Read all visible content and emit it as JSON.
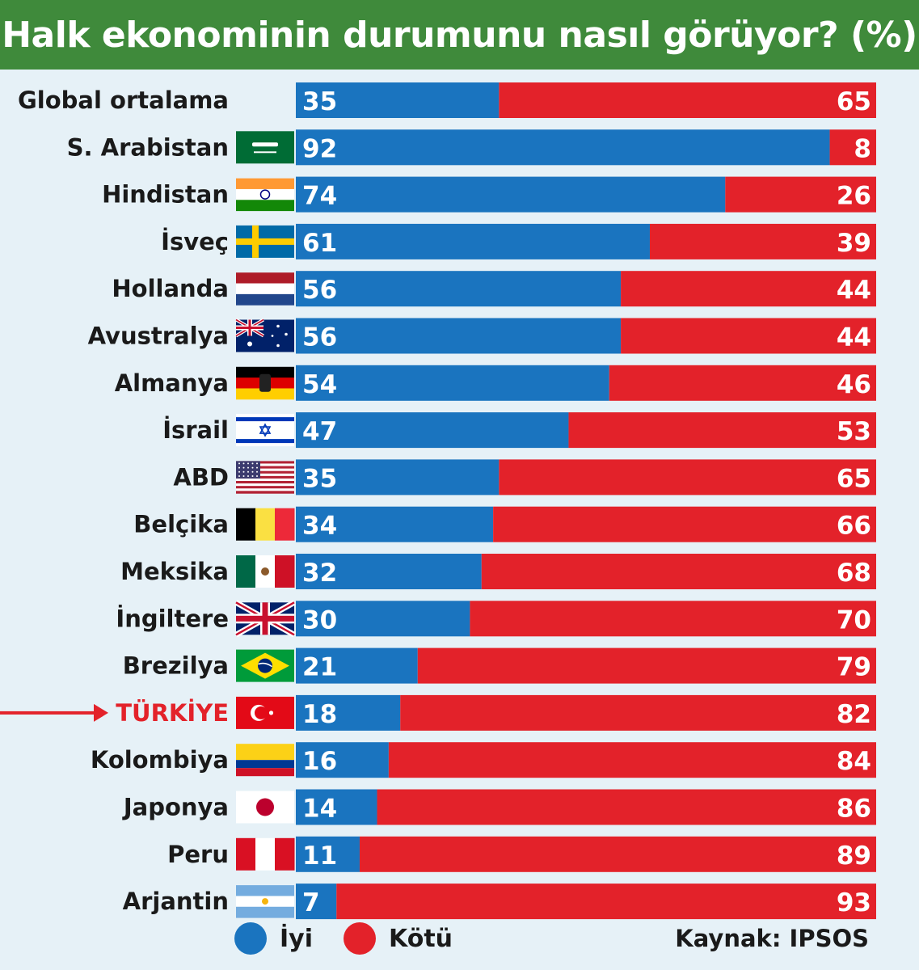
{
  "header": {
    "title": "Halk ekonominin durumunu nasıl görüyor? (%)"
  },
  "chart_data": {
    "type": "bar",
    "stacked": true,
    "orientation": "horizontal",
    "title": "Halk ekonominin durumunu nasıl görüyor? (%)",
    "categories": [
      "Global ortalama",
      "S. Arabistan",
      "Hindistan",
      "İsveç",
      "Hollanda",
      "Avustralya",
      "Almanya",
      "İsrail",
      "ABD",
      "Belçika",
      "Meksika",
      "İngiltere",
      "Brezilya",
      "TÜRKİYE",
      "Kolombiya",
      "Japonya",
      "Peru",
      "Arjantin"
    ],
    "highlight": "TÜRKİYE",
    "series": [
      {
        "name": "İyi",
        "color": "#1a74bf",
        "values": [
          35,
          92,
          74,
          61,
          56,
          56,
          54,
          47,
          35,
          34,
          32,
          30,
          21,
          18,
          16,
          14,
          11,
          7
        ]
      },
      {
        "name": "Kötü",
        "color": "#e3222a",
        "values": [
          65,
          8,
          26,
          39,
          44,
          44,
          46,
          53,
          65,
          66,
          68,
          70,
          79,
          82,
          84,
          86,
          89,
          93
        ]
      }
    ],
    "xlim": [
      0,
      100
    ],
    "flags": [
      "",
      "saudi-arabia-flag",
      "india-flag",
      "sweden-flag",
      "netherlands-flag",
      "australia-flag",
      "germany-flag",
      "israel-flag",
      "usa-flag",
      "belgium-flag",
      "mexico-flag",
      "uk-flag",
      "brazil-flag",
      "turkey-flag",
      "colombia-flag",
      "japan-flag",
      "peru-flag",
      "argentina-flag"
    ]
  },
  "legend": {
    "good_label": "İyi",
    "bad_label": "Kötü",
    "good_color": "#1a74bf",
    "bad_color": "#e3222a"
  },
  "source": "Kaynak: IPSOS"
}
